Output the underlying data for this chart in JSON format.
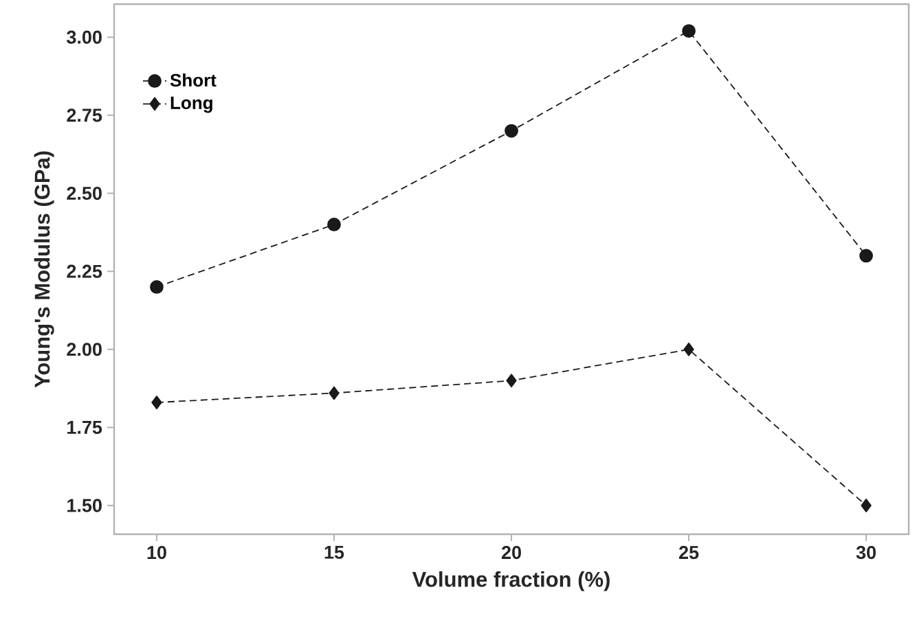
{
  "chart_data": {
    "type": "line",
    "xlabel": "Volume fraction (%)",
    "ylabel": "Young's Modulus (GPa)",
    "x": [
      10,
      15,
      20,
      25,
      30
    ],
    "series": [
      {
        "name": "Short",
        "color": "#1a1a1a",
        "values": [
          2.2,
          2.4,
          2.7,
          3.02,
          2.3
        ],
        "marker": "circle"
      },
      {
        "name": "Long",
        "color": "#1a1a1a",
        "values": [
          1.83,
          1.86,
          1.9,
          2.0,
          1.5
        ],
        "marker": "diamond"
      }
    ],
    "xlim": [
      8.8,
      31.2
    ],
    "xticks": [
      10,
      15,
      20,
      25,
      30
    ],
    "ylim": [
      1.408,
      3.106
    ],
    "yticks": [
      {
        "value": 1.5,
        "label": "1.50"
      },
      {
        "value": 1.75,
        "label": "1.75"
      },
      {
        "value": 2.0,
        "label": "2.00"
      },
      {
        "value": 2.25,
        "label": "2.25"
      },
      {
        "value": 2.5,
        "label": "2.50"
      },
      {
        "value": 2.75,
        "label": "2.75"
      },
      {
        "value": 3.0,
        "label": "3.00"
      }
    ],
    "line_style": "dashed",
    "grid": false,
    "legend": "top left"
  }
}
